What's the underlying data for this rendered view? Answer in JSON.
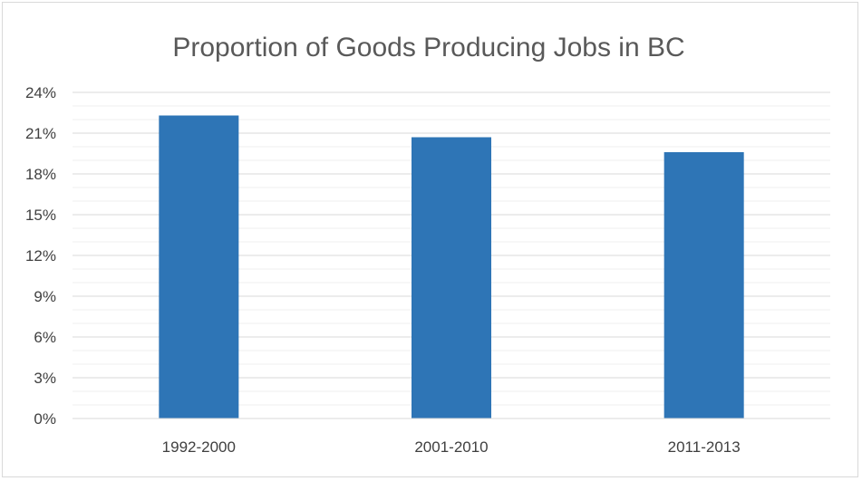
{
  "chart_data": {
    "type": "bar",
    "title": "Proportion of Goods Producing Jobs in BC",
    "xlabel": "",
    "ylabel": "",
    "categories": [
      "1992-2000",
      "2001-2010",
      "2011-2013"
    ],
    "values": [
      22.3,
      20.7,
      19.6
    ],
    "value_unit": "%",
    "ylim": [
      0,
      24
    ],
    "yticks": [
      "0%",
      "3%",
      "6%",
      "9%",
      "12%",
      "15%",
      "18%",
      "21%",
      "24%"
    ],
    "minor_grid": true,
    "legend": "none",
    "bar_color": "#2e75b6"
  }
}
